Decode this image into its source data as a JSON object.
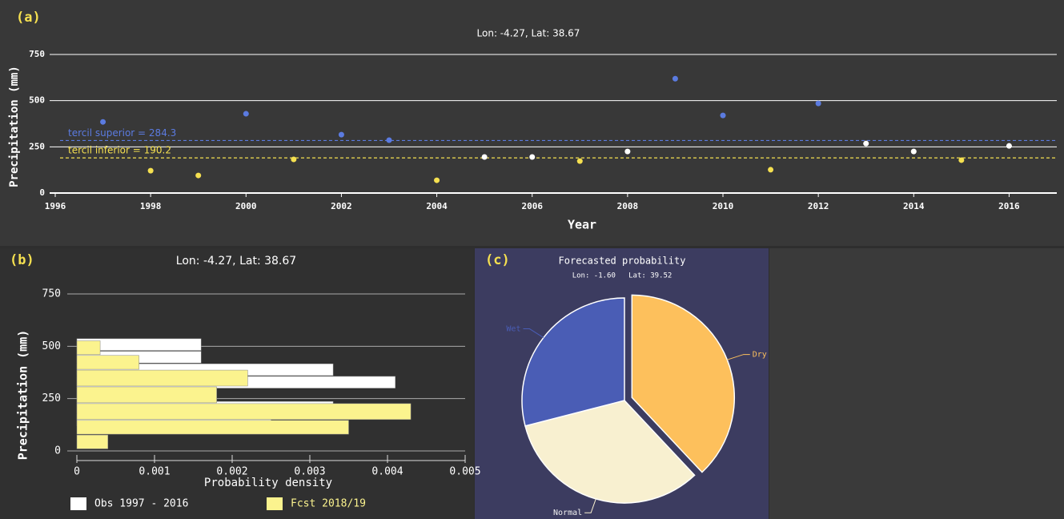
{
  "chart_data": [
    {
      "type": "scatter",
      "panel": "(a)",
      "title": "Lon: -4.27, Lat: 38.67",
      "xlabel": "Year",
      "ylabel": "Precipitation (mm)",
      "x": [
        1997,
        1998,
        1999,
        2000,
        2001,
        2002,
        2003,
        2004,
        2005,
        2006,
        2007,
        2008,
        2009,
        2010,
        2011,
        2012,
        2013,
        2014,
        2015,
        2016
      ],
      "values": [
        385,
        121,
        95,
        429,
        182,
        316,
        286,
        69,
        195,
        195,
        173,
        225,
        619,
        420,
        126,
        485,
        268,
        225,
        178,
        255
      ],
      "xlim": [
        1996,
        2017
      ],
      "xticks": [
        1996,
        1998,
        2000,
        2002,
        2004,
        2006,
        2008,
        2010,
        2012,
        2014,
        2016
      ],
      "ylim": [
        0,
        750
      ],
      "yticks": [
        0,
        250,
        500,
        750
      ],
      "grid": true,
      "thresholds": [
        {
          "label": "tercil superior = 284.3",
          "value": 284.3,
          "color": "#5b7be0"
        },
        {
          "label": "tercil inferior = 190.2",
          "value": 190.2,
          "color": "#f5e050"
        }
      ],
      "colors": {
        "above": "#5b7be0",
        "between": "#ffffff",
        "below": "#f5e050"
      }
    },
    {
      "type": "histogram",
      "orientation": "horizontal",
      "panel": "(b)",
      "title": "Lon: -4.27, Lat: 38.67",
      "xlabel": "Probability density",
      "ylabel": "Precipitation (mm)",
      "series": [
        {
          "name": "Obs 1997 - 2016",
          "color": "#ffffff",
          "bins": [
            120,
            180,
            240,
            300,
            360,
            420,
            480,
            540
          ],
          "values": [
            0.0025,
            0.0033,
            0.0018,
            0.0041,
            0.0033,
            0.0016,
            0.0016
          ]
        },
        {
          "name": "Fcst 2018/19",
          "color": "#fbf38e",
          "bins": [
            10,
            80,
            150,
            230,
            310,
            390,
            460,
            530
          ],
          "values": [
            0.0004,
            0.0035,
            0.0043,
            0.0018,
            0.0022,
            0.0008,
            0.0003
          ]
        }
      ],
      "xlim": [
        0,
        0.005
      ],
      "xticks": [
        0,
        0.001,
        0.002,
        0.003,
        0.004,
        0.005
      ],
      "ylim": [
        0,
        750
      ],
      "yticks": [
        0,
        250,
        500,
        750
      ],
      "grid": true
    },
    {
      "type": "pie",
      "panel": "(c)",
      "title": "Forecasted probability",
      "subtitle": "Lon: -1.60   Lat: 39.52",
      "categories": [
        "Dry",
        "Normal",
        "Wet"
      ],
      "values": [
        38,
        33,
        29
      ],
      "colors": [
        "#fdc05c",
        "#f8f0d0",
        "#4a5db5"
      ],
      "explode": [
        true,
        false,
        false
      ]
    }
  ]
}
